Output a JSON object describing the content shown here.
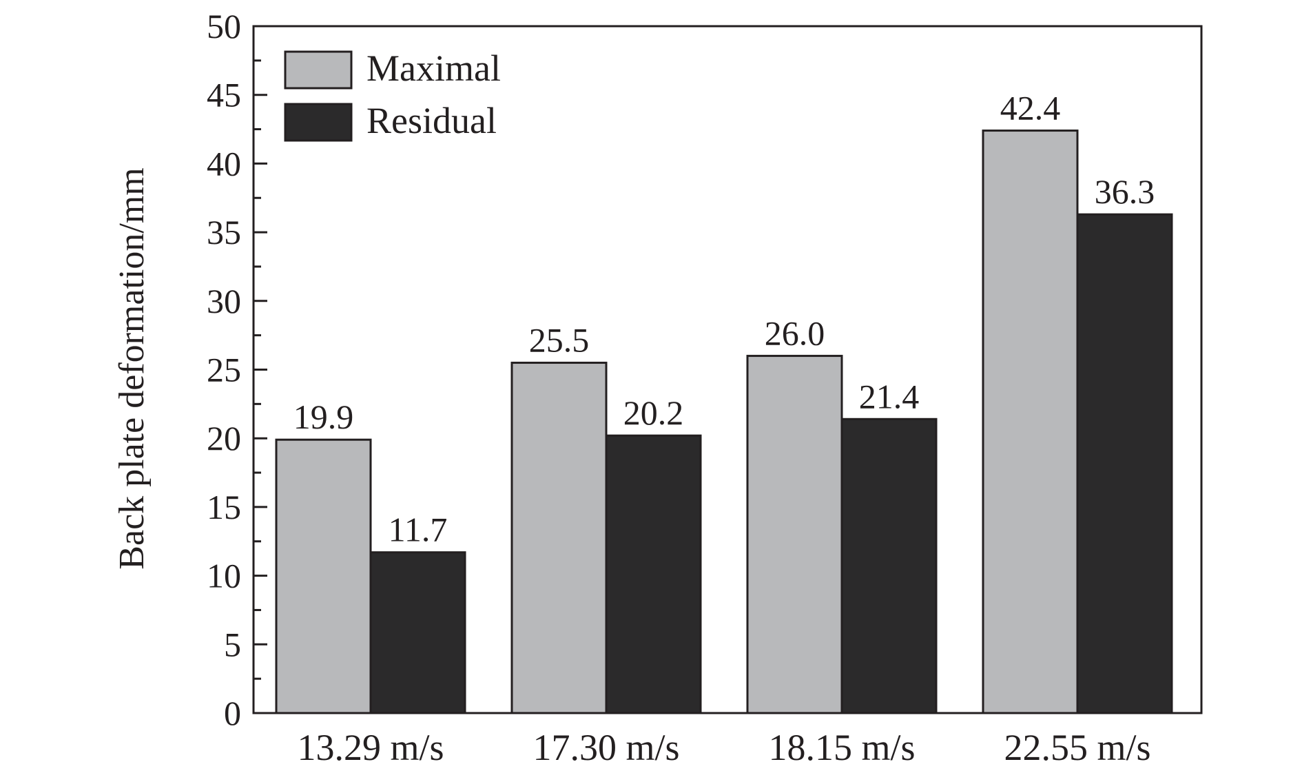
{
  "chart_data": {
    "type": "bar",
    "title": "",
    "xlabel": "",
    "ylabel": "Back plate deformation/mm",
    "ylim": [
      0,
      50
    ],
    "yticks": [
      0,
      5,
      10,
      15,
      20,
      25,
      30,
      35,
      40,
      45,
      50
    ],
    "categories": [
      "13.29 m/s",
      "17.30 m/s",
      "18.15 m/s",
      "22.55 m/s"
    ],
    "series": [
      {
        "name": "Maximal",
        "color": "#b8b9bb",
        "values": [
          19.9,
          25.5,
          26.0,
          42.4
        ],
        "labels": [
          "19.9",
          "25.5",
          "26.0",
          "42.4"
        ]
      },
      {
        "name": "Residual",
        "color": "#2b2a2b",
        "values": [
          11.7,
          20.2,
          21.4,
          36.3
        ],
        "labels": [
          "11.7",
          "20.2",
          "21.4",
          "36.3"
        ]
      }
    ],
    "legend_position": "top-left",
    "grid": false,
    "axis_color": "#231f20"
  }
}
